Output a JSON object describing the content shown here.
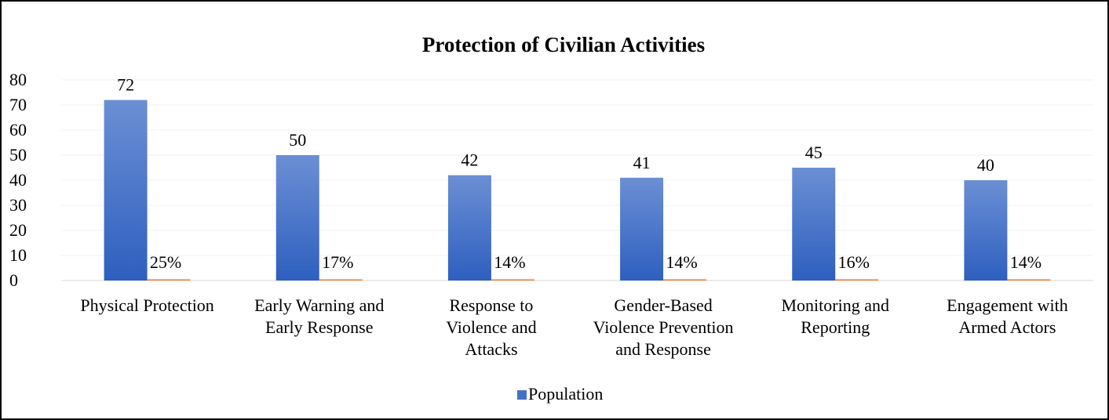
{
  "chart_data": {
    "type": "bar",
    "title": "Protection of Civilian Activities",
    "categories": [
      [
        "Physical Protection"
      ],
      [
        "Early Warning and",
        "Early Response"
      ],
      [
        "Response to",
        "Violence and",
        "Attacks"
      ],
      [
        "Gender-Based",
        "Violence Prevention",
        "and Response"
      ],
      [
        "Monitoring and",
        "Reporting"
      ],
      [
        "Engagement with",
        "Armed Actors"
      ]
    ],
    "series": [
      {
        "name": "Population",
        "values": [
          72,
          50,
          42,
          41,
          45,
          40
        ],
        "color": "#4472c4"
      },
      {
        "name": "",
        "values": [
          0.25,
          0.17,
          0.14,
          0.14,
          0.16,
          0.14
        ],
        "labels": [
          "25%",
          "17%",
          "14%",
          "14%",
          "16%",
          "14%"
        ],
        "color": "#ed7d31"
      }
    ],
    "ylim": [
      0,
      80
    ],
    "yticks": [
      0,
      10,
      20,
      30,
      40,
      50,
      60,
      70,
      80
    ],
    "grid": true,
    "legend_position": "bottom"
  }
}
